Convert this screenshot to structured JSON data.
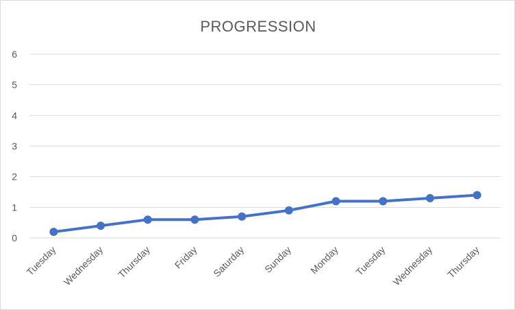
{
  "chart_data": {
    "type": "line",
    "title": "PROGRESSION",
    "xlabel": "",
    "ylabel": "",
    "categories": [
      "Tuesday",
      "Wednesday",
      "Thursday",
      "Friday",
      "Saturday",
      "Sunday",
      "Monday",
      "Tuesday",
      "Wednesday",
      "Thursday"
    ],
    "series": [
      {
        "values": [
          0.2,
          0.4,
          0.6,
          0.6,
          0.7,
          0.9,
          1.2,
          1.2,
          1.3,
          1.4
        ],
        "color": "#4472c4"
      }
    ],
    "ylim": [
      0,
      6
    ],
    "yticks": [
      "0",
      "1",
      "2",
      "3",
      "4",
      "5",
      "6"
    ],
    "grid": true,
    "legend": "none"
  }
}
